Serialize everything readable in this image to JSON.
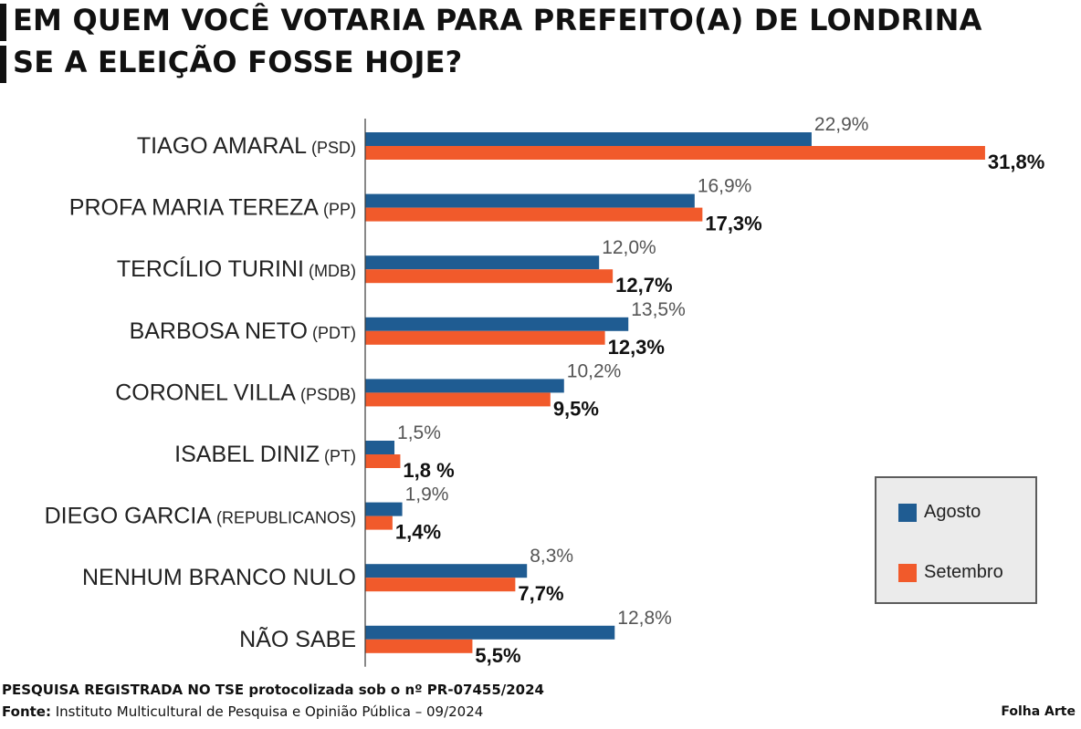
{
  "title": {
    "line1": "EM QUEM VOCÊ VOTARIA PARA PREFEITO(A) DE LONDRINA",
    "line2": "SE A ELEIÇÃO FOSSE HOJE?"
  },
  "colors": {
    "agosto": "#1f5c92",
    "setembro": "#f15a2b"
  },
  "legend": {
    "agosto": "Agosto",
    "setembro": "Setembro"
  },
  "chart_data": {
    "type": "bar",
    "orientation": "horizontal",
    "grid": false,
    "legend_position": "bottom-right",
    "categories": [
      {
        "name": "TIAGO AMARAL",
        "party": "(PSD)"
      },
      {
        "name": "PROFA MARIA TEREZA",
        "party": "(PP)"
      },
      {
        "name": "TERCÍLIO TURINI",
        "party": "(MDB)"
      },
      {
        "name": "BARBOSA NETO",
        "party": "(PDT)"
      },
      {
        "name": "CORONEL VILLA",
        "party": "(PSDB)"
      },
      {
        "name": "ISABEL DINIZ",
        "party": "(PT)"
      },
      {
        "name": "DIEGO GARCIA",
        "party": "(REPUBLICANOS)"
      },
      {
        "name": "NENHUM BRANCO NULO",
        "party": ""
      },
      {
        "name": "NÃO SABE",
        "party": ""
      }
    ],
    "series": [
      {
        "name": "Agosto",
        "values": [
          22.9,
          16.9,
          12.0,
          13.5,
          10.2,
          1.5,
          1.9,
          8.3,
          12.8
        ],
        "labels": [
          "22,9%",
          "16,9%",
          "12,0%",
          "13,5%",
          "10,2%",
          "1,5%",
          "1,9%",
          "8,3%",
          "12,8%"
        ]
      },
      {
        "name": "Setembro",
        "values": [
          31.8,
          17.3,
          12.7,
          12.3,
          9.5,
          1.8,
          1.4,
          7.7,
          5.5
        ],
        "labels": [
          "31,8%",
          "17,3%",
          "12,7%",
          "12,3%",
          "9,5%",
          "1,8 %",
          "1,4%",
          "7,7%",
          "5,5%"
        ]
      }
    ]
  },
  "footer": {
    "registry_bold": "PESQUISA REGISTRADA NO TSE protocolizada sob o nº PR-07455/2024",
    "source_label": "Fonte:",
    "source_text": " Instituto Multicultural de Pesquisa e Opinião Pública – 09/2024",
    "credit": "Folha Arte"
  }
}
